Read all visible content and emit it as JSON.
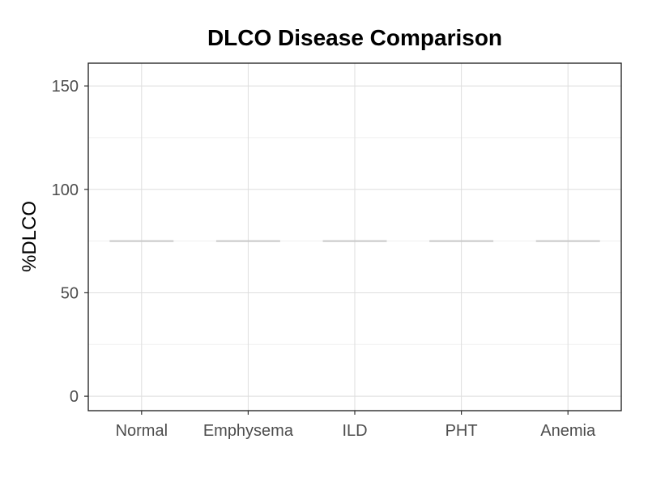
{
  "chart_data": {
    "type": "box",
    "title": "DLCO Disease Comparison",
    "xlabel": "",
    "ylabel": "%DLCO",
    "categories": [
      "Normal",
      "Emphysema",
      "ILD",
      "PHT",
      "Anemia"
    ],
    "values": [
      75,
      75,
      75,
      75,
      75
    ],
    "ylim": [
      -7,
      161
    ],
    "yticks": [
      0,
      50,
      100,
      150
    ],
    "grid": true,
    "colors": {
      "panel_border": "#1a1a1a",
      "grid_major": "#dedede",
      "grid_minor": "#efefef",
      "median_line": "#c8c8c8",
      "tick_label": "#4d4d4d"
    }
  }
}
